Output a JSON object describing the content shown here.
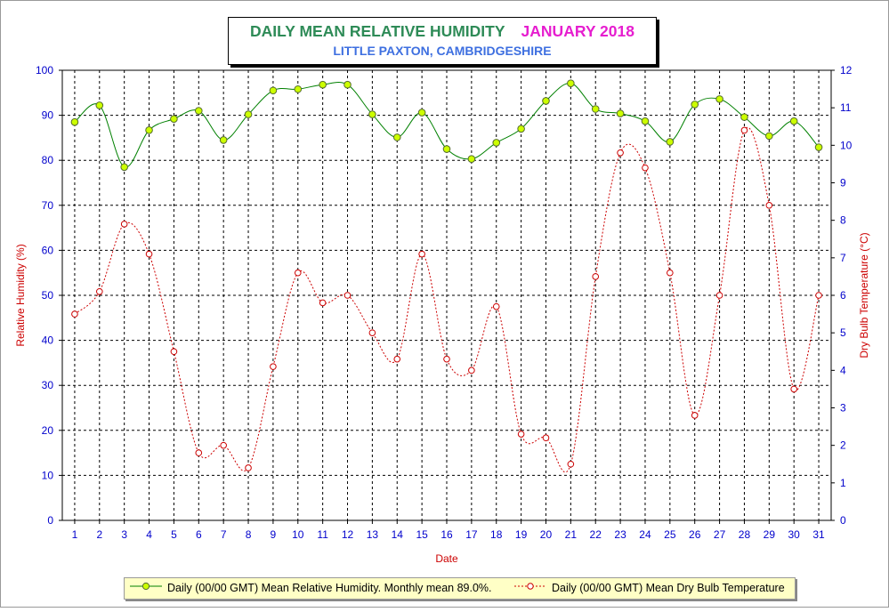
{
  "title": {
    "main": "DAILY MEAN RELATIVE HUMIDITY",
    "month": "JANUARY 2018",
    "subtitle": "LITTLE PAXTON, CAMBRIDGESHIRE"
  },
  "colors": {
    "title_main": "#2e8b57",
    "title_month": "#e61ecf",
    "subtitle": "#3d6fe0",
    "humidity_line": "#008000",
    "humidity_marker": "#ccff00",
    "temp_line": "#cc0000",
    "axis_left": "#cc0000",
    "ticks": "#0000cc",
    "legend_bg": "#ffffc6"
  },
  "legend": {
    "humidity": "Daily (00/00 GMT) Mean Relative Humidity. Monthly mean 89.0%.",
    "temperature": "Daily (00/00 GMT) Mean Dry Bulb Temperature"
  },
  "chart_data": {
    "type": "line",
    "xlabel": "Date",
    "ylabel_left": "Relative Humidity (%)",
    "ylabel_right": "Dry Bulb Temperature (°C)",
    "x": [
      1,
      2,
      3,
      4,
      5,
      6,
      7,
      8,
      9,
      10,
      11,
      12,
      13,
      14,
      15,
      16,
      17,
      18,
      19,
      20,
      21,
      22,
      23,
      24,
      25,
      26,
      27,
      28,
      29,
      30,
      31
    ],
    "xlim": [
      0.5,
      31.5
    ],
    "ylim_left": [
      0,
      100
    ],
    "ylim_right": [
      0,
      12
    ],
    "yticks_left": [
      0,
      10,
      20,
      30,
      40,
      50,
      60,
      70,
      80,
      90,
      100
    ],
    "yticks_right": [
      0,
      1,
      2,
      3,
      4,
      5,
      6,
      7,
      8,
      9,
      10,
      11,
      12
    ],
    "grid": true,
    "legend_position": "bottom",
    "series": [
      {
        "name": "Daily (00/00 GMT) Mean Relative Humidity. Monthly mean 89.0%.",
        "axis": "left",
        "style": "solid",
        "values": [
          88.5,
          92.2,
          78.5,
          86.7,
          89.2,
          91.0,
          84.5,
          90.2,
          95.5,
          95.8,
          96.8,
          96.8,
          90.2,
          85.1,
          90.6,
          82.5,
          80.3,
          83.9,
          87.0,
          93.2,
          97.1,
          91.4,
          90.4,
          88.7,
          84.1,
          92.4,
          93.6,
          89.6,
          85.4,
          88.7,
          82.9
        ]
      },
      {
        "name": "Daily (00/00 GMT) Mean Dry Bulb Temperature",
        "axis": "right",
        "style": "dotted",
        "values": [
          5.5,
          6.1,
          7.9,
          7.1,
          4.5,
          1.8,
          2.0,
          1.4,
          4.1,
          6.6,
          5.8,
          6.0,
          5.0,
          4.3,
          7.1,
          4.3,
          4.0,
          5.7,
          2.3,
          2.2,
          1.5,
          6.5,
          9.8,
          9.4,
          6.6,
          2.8,
          6.0,
          10.4,
          8.4,
          3.5,
          6.0
        ]
      }
    ]
  }
}
